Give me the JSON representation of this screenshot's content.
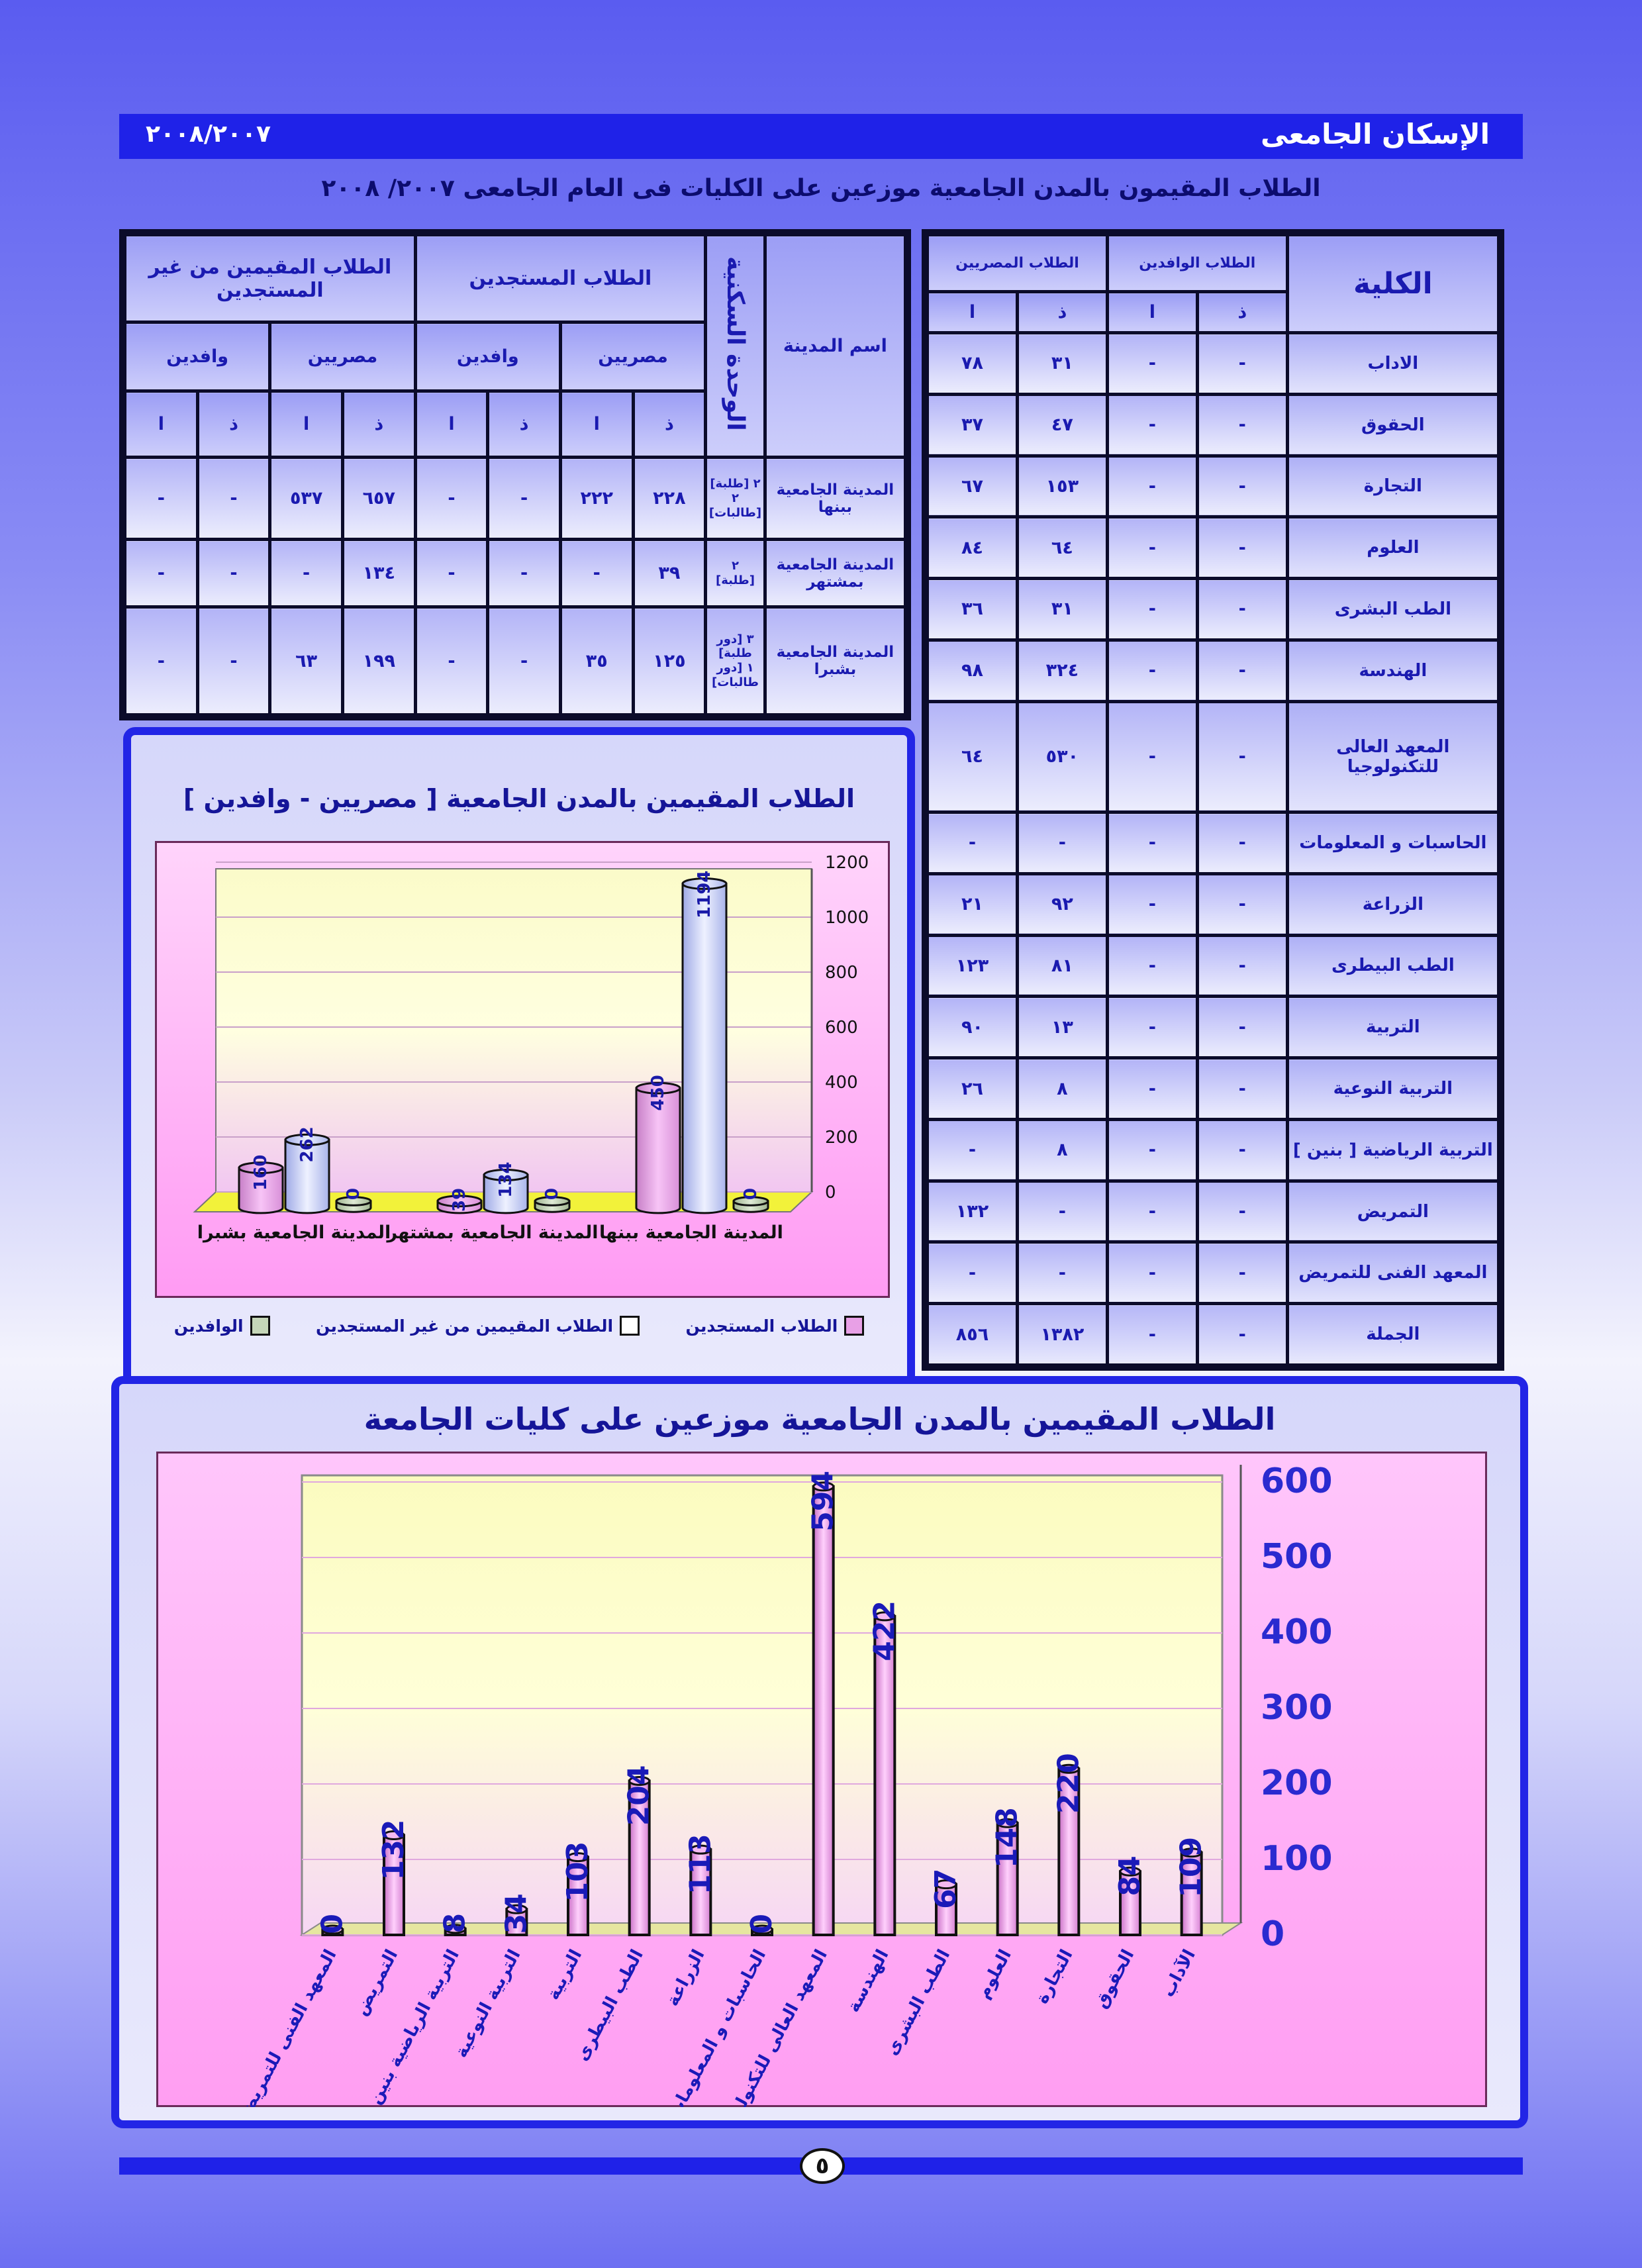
{
  "header": {
    "title": "الإسكان الجامعى",
    "year": "٢٠٠٨/٢٠٠٧"
  },
  "page_heading": "الطلاب المقيمون بالمدن الجامعية موزعين على الكليات فى العام الجامعى ٢٠٠٧/ ٢٠٠٨",
  "faculty_table": {
    "col_faculty": "الكلية",
    "col_egyptians": "الطلاب المصريين",
    "col_foreign": "الطلاب الوافدين",
    "sub_m": "ذ",
    "sub_f": "ا",
    "rows": [
      {
        "name": "الاداب",
        "eg_m": "٣١",
        "eg_f": "٧٨",
        "fo_m": "-",
        "fo_f": "-"
      },
      {
        "name": "الحقوق",
        "eg_m": "٤٧",
        "eg_f": "٣٧",
        "fo_m": "-",
        "fo_f": "-"
      },
      {
        "name": "التجارة",
        "eg_m": "١٥٣",
        "eg_f": "٦٧",
        "fo_m": "-",
        "fo_f": "-"
      },
      {
        "name": "العلوم",
        "eg_m": "٦٤",
        "eg_f": "٨٤",
        "fo_m": "-",
        "fo_f": "-"
      },
      {
        "name": "الطب البشرى",
        "eg_m": "٣١",
        "eg_f": "٣٦",
        "fo_m": "-",
        "fo_f": "-"
      },
      {
        "name": "الهندسة",
        "eg_m": "٣٢٤",
        "eg_f": "٩٨",
        "fo_m": "-",
        "fo_f": "-"
      },
      {
        "name": "المعهد العالى للتكنولوجيا",
        "eg_m": "٥٣٠",
        "eg_f": "٦٤",
        "fo_m": "-",
        "fo_f": "-"
      },
      {
        "name": "الحاسبات و المعلومات",
        "eg_m": "-",
        "eg_f": "-",
        "fo_m": "-",
        "fo_f": "-"
      },
      {
        "name": "الزراعة",
        "eg_m": "٩٢",
        "eg_f": "٢١",
        "fo_m": "-",
        "fo_f": "-"
      },
      {
        "name": "الطب البيطرى",
        "eg_m": "٨١",
        "eg_f": "١٢٣",
        "fo_m": "-",
        "fo_f": "-"
      },
      {
        "name": "التربية",
        "eg_m": "١٣",
        "eg_f": "٩٠",
        "fo_m": "-",
        "fo_f": "-"
      },
      {
        "name": "التربية النوعية",
        "eg_m": "٨",
        "eg_f": "٢٦",
        "fo_m": "-",
        "fo_f": "-"
      },
      {
        "name": "التربية الرياضية [ بنين ]",
        "eg_m": "٨",
        "eg_f": "-",
        "fo_m": "-",
        "fo_f": "-"
      },
      {
        "name": "التمريض",
        "eg_m": "-",
        "eg_f": "١٣٢",
        "fo_m": "-",
        "fo_f": "-"
      },
      {
        "name": "المعهد الفنى للتمريض",
        "eg_m": "-",
        "eg_f": "-",
        "fo_m": "-",
        "fo_f": "-"
      }
    ],
    "total": {
      "name": "الجملة",
      "eg_m": "١٣٨٢",
      "eg_f": "٨٥٦",
      "fo_m": "-",
      "fo_f": "-"
    }
  },
  "city_table": {
    "col_city": "اسم المدينة",
    "col_unit": "الوحدة السكنية",
    "col_new": "الطلاب المستجدين",
    "col_non_new": "الطلاب المقيمين من غير المستجدين",
    "egyptians": "مصريين",
    "foreign": "وافدين",
    "sub_m": "ذ",
    "sub_f": "ا",
    "rows": [
      {
        "city": "المدينة الجامعية ببنها",
        "unit_1": "٢ [طلبة]",
        "unit_2": "٢ [طالبات]",
        "new_eg_m": "٢٢٨",
        "new_eg_f": "٢٢٢",
        "new_fo_m": "-",
        "new_fo_f": "-",
        "old_eg_m": "٦٥٧",
        "old_eg_f": "٥٣٧",
        "old_fo_m": "-",
        "old_fo_f": "-"
      },
      {
        "city": "المدينة الجامعية بمشتهر",
        "unit_1": "٢",
        "unit_2": "[طلبة]",
        "new_eg_m": "٣٩",
        "new_eg_f": "-",
        "new_fo_m": "-",
        "new_fo_f": "-",
        "old_eg_m": "١٣٤",
        "old_eg_f": "-",
        "old_fo_m": "-",
        "old_fo_f": "-"
      },
      {
        "city": "المدينة الجامعية بشبرا",
        "unit_1": "٣ [دور طلبة]",
        "unit_2": "١ [دور طالبات]",
        "new_eg_m": "١٢٥",
        "new_eg_f": "٣٥",
        "new_fo_m": "-",
        "new_fo_f": "-",
        "old_eg_m": "١٩٩",
        "old_eg_f": "٦٣",
        "old_fo_m": "-",
        "old_fo_f": "-"
      }
    ]
  },
  "chart_data": [
    {
      "type": "bar",
      "title": "الطلاب المقيمين بالمدن الجامعية [ مصريين - وافدين ]",
      "categories": [
        "المدينة الجامعية ببنها",
        "المدينة الجامعية بمشتهر",
        "المدينة الجامعية بشبرا"
      ],
      "series": [
        {
          "name": "الطلاب المستجدين",
          "values": [
            450,
            39,
            160
          ],
          "color": "#e8a0e6"
        },
        {
          "name": "الطلاب المقيمين من غير المستجدين",
          "values": [
            1194,
            134,
            262
          ],
          "color": "#d4dbf8"
        },
        {
          "name": "الوافدين",
          "values": [
            0,
            0,
            0
          ],
          "color": "#c5d6b8"
        }
      ],
      "ylim": [
        0,
        1200
      ],
      "yticks": [
        0,
        200,
        400,
        600,
        800,
        1000,
        1200
      ],
      "legend": "bottom",
      "grid": true
    },
    {
      "type": "bar",
      "title": "الطلاب المقيمين بالمدن الجامعية موزعين على كليات الجامعة",
      "categories": [
        "الآداب",
        "الحقوق",
        "التجارة",
        "العلوم",
        "الطب البشرى",
        "الهندسة",
        "المعهد العالى للتكنولوجيا",
        "الحاسبات و المعلومات",
        "الزراعة",
        "الطب البيطرى",
        "التربية",
        "التربية النوعية",
        "التربية الرياضية بنين",
        "التمريض",
        "المعهد الفنى للتمريض"
      ],
      "values": [
        109,
        84,
        220,
        148,
        67,
        422,
        594,
        0,
        113,
        204,
        103,
        34,
        8,
        132,
        0
      ],
      "color": "#f2aef0",
      "ylim": [
        0,
        600
      ],
      "yticks": [
        0,
        100,
        200,
        300,
        400,
        500,
        600
      ],
      "grid": true
    }
  ],
  "page_number": "٥"
}
